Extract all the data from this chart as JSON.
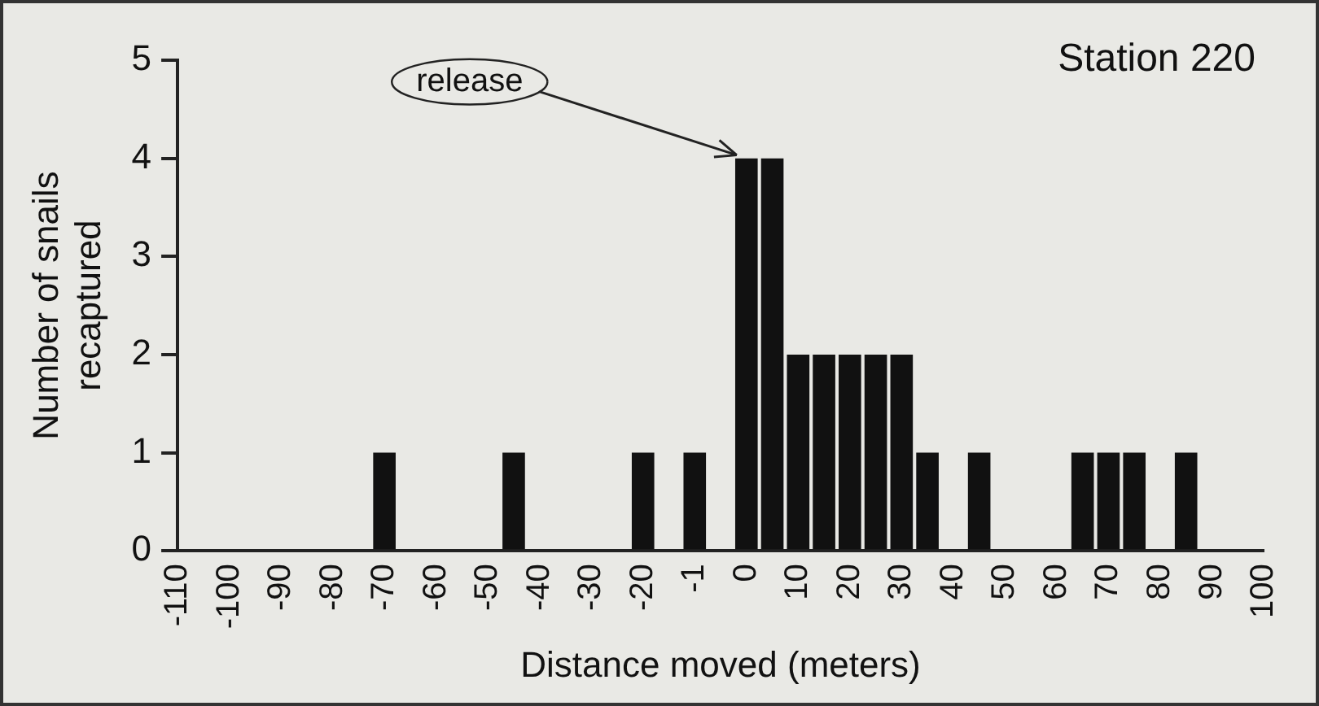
{
  "chart_data": {
    "type": "bar",
    "title": "Station 220",
    "xlabel": "Distance moved (meters)",
    "ylabel": "Number of snails recaptured",
    "categories": [
      "-110",
      null,
      "-100",
      null,
      "-90",
      null,
      "-80",
      null,
      "-70",
      null,
      "-60",
      null,
      "-50",
      null,
      "-40",
      null,
      "-30",
      null,
      "-20",
      null,
      "-1",
      null,
      "0",
      null,
      "10",
      null,
      "20",
      null,
      "30",
      null,
      "40",
      null,
      "50",
      null,
      "60",
      null,
      "70",
      null,
      "80",
      null,
      "90",
      null,
      "100"
    ],
    "values": [
      0,
      0,
      0,
      0,
      0,
      0,
      0,
      0,
      1,
      0,
      0,
      0,
      0,
      1,
      0,
      0,
      0,
      0,
      1,
      0,
      1,
      0,
      4,
      4,
      2,
      2,
      2,
      2,
      2,
      1,
      0,
      1,
      0,
      0,
      0,
      1,
      1,
      1,
      0,
      1,
      0,
      0,
      0
    ],
    "color": "#111111",
    "ylim": [
      0,
      5
    ],
    "yticks": [
      0,
      1,
      2,
      3,
      4,
      5
    ],
    "grid": false,
    "legend": false,
    "annotations": [
      {
        "text": "release",
        "x": "0",
        "y": 4
      }
    ]
  }
}
